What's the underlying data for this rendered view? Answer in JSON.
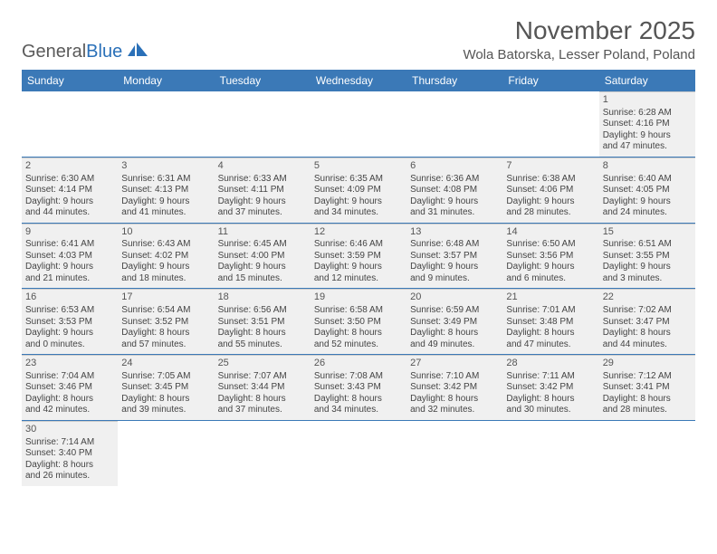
{
  "logo": {
    "text1": "General",
    "text2": "Blue"
  },
  "title": "November 2025",
  "location": "Wola Batorska, Lesser Poland, Poland",
  "day_headers": [
    "Sunday",
    "Monday",
    "Tuesday",
    "Wednesday",
    "Thursday",
    "Friday",
    "Saturday"
  ],
  "colors": {
    "header_bg": "#3b79b7",
    "header_text": "#ffffff",
    "cell_bg": "#f0f0f0",
    "text": "#444444",
    "rule": "#3b79b7"
  },
  "weeks": [
    [
      null,
      null,
      null,
      null,
      null,
      null,
      {
        "n": "1",
        "sr": "Sunrise: 6:28 AM",
        "ss": "Sunset: 4:16 PM",
        "d1": "Daylight: 9 hours",
        "d2": "and 47 minutes."
      }
    ],
    [
      {
        "n": "2",
        "sr": "Sunrise: 6:30 AM",
        "ss": "Sunset: 4:14 PM",
        "d1": "Daylight: 9 hours",
        "d2": "and 44 minutes."
      },
      {
        "n": "3",
        "sr": "Sunrise: 6:31 AM",
        "ss": "Sunset: 4:13 PM",
        "d1": "Daylight: 9 hours",
        "d2": "and 41 minutes."
      },
      {
        "n": "4",
        "sr": "Sunrise: 6:33 AM",
        "ss": "Sunset: 4:11 PM",
        "d1": "Daylight: 9 hours",
        "d2": "and 37 minutes."
      },
      {
        "n": "5",
        "sr": "Sunrise: 6:35 AM",
        "ss": "Sunset: 4:09 PM",
        "d1": "Daylight: 9 hours",
        "d2": "and 34 minutes."
      },
      {
        "n": "6",
        "sr": "Sunrise: 6:36 AM",
        "ss": "Sunset: 4:08 PM",
        "d1": "Daylight: 9 hours",
        "d2": "and 31 minutes."
      },
      {
        "n": "7",
        "sr": "Sunrise: 6:38 AM",
        "ss": "Sunset: 4:06 PM",
        "d1": "Daylight: 9 hours",
        "d2": "and 28 minutes."
      },
      {
        "n": "8",
        "sr": "Sunrise: 6:40 AM",
        "ss": "Sunset: 4:05 PM",
        "d1": "Daylight: 9 hours",
        "d2": "and 24 minutes."
      }
    ],
    [
      {
        "n": "9",
        "sr": "Sunrise: 6:41 AM",
        "ss": "Sunset: 4:03 PM",
        "d1": "Daylight: 9 hours",
        "d2": "and 21 minutes."
      },
      {
        "n": "10",
        "sr": "Sunrise: 6:43 AM",
        "ss": "Sunset: 4:02 PM",
        "d1": "Daylight: 9 hours",
        "d2": "and 18 minutes."
      },
      {
        "n": "11",
        "sr": "Sunrise: 6:45 AM",
        "ss": "Sunset: 4:00 PM",
        "d1": "Daylight: 9 hours",
        "d2": "and 15 minutes."
      },
      {
        "n": "12",
        "sr": "Sunrise: 6:46 AM",
        "ss": "Sunset: 3:59 PM",
        "d1": "Daylight: 9 hours",
        "d2": "and 12 minutes."
      },
      {
        "n": "13",
        "sr": "Sunrise: 6:48 AM",
        "ss": "Sunset: 3:57 PM",
        "d1": "Daylight: 9 hours",
        "d2": "and 9 minutes."
      },
      {
        "n": "14",
        "sr": "Sunrise: 6:50 AM",
        "ss": "Sunset: 3:56 PM",
        "d1": "Daylight: 9 hours",
        "d2": "and 6 minutes."
      },
      {
        "n": "15",
        "sr": "Sunrise: 6:51 AM",
        "ss": "Sunset: 3:55 PM",
        "d1": "Daylight: 9 hours",
        "d2": "and 3 minutes."
      }
    ],
    [
      {
        "n": "16",
        "sr": "Sunrise: 6:53 AM",
        "ss": "Sunset: 3:53 PM",
        "d1": "Daylight: 9 hours",
        "d2": "and 0 minutes."
      },
      {
        "n": "17",
        "sr": "Sunrise: 6:54 AM",
        "ss": "Sunset: 3:52 PM",
        "d1": "Daylight: 8 hours",
        "d2": "and 57 minutes."
      },
      {
        "n": "18",
        "sr": "Sunrise: 6:56 AM",
        "ss": "Sunset: 3:51 PM",
        "d1": "Daylight: 8 hours",
        "d2": "and 55 minutes."
      },
      {
        "n": "19",
        "sr": "Sunrise: 6:58 AM",
        "ss": "Sunset: 3:50 PM",
        "d1": "Daylight: 8 hours",
        "d2": "and 52 minutes."
      },
      {
        "n": "20",
        "sr": "Sunrise: 6:59 AM",
        "ss": "Sunset: 3:49 PM",
        "d1": "Daylight: 8 hours",
        "d2": "and 49 minutes."
      },
      {
        "n": "21",
        "sr": "Sunrise: 7:01 AM",
        "ss": "Sunset: 3:48 PM",
        "d1": "Daylight: 8 hours",
        "d2": "and 47 minutes."
      },
      {
        "n": "22",
        "sr": "Sunrise: 7:02 AM",
        "ss": "Sunset: 3:47 PM",
        "d1": "Daylight: 8 hours",
        "d2": "and 44 minutes."
      }
    ],
    [
      {
        "n": "23",
        "sr": "Sunrise: 7:04 AM",
        "ss": "Sunset: 3:46 PM",
        "d1": "Daylight: 8 hours",
        "d2": "and 42 minutes."
      },
      {
        "n": "24",
        "sr": "Sunrise: 7:05 AM",
        "ss": "Sunset: 3:45 PM",
        "d1": "Daylight: 8 hours",
        "d2": "and 39 minutes."
      },
      {
        "n": "25",
        "sr": "Sunrise: 7:07 AM",
        "ss": "Sunset: 3:44 PM",
        "d1": "Daylight: 8 hours",
        "d2": "and 37 minutes."
      },
      {
        "n": "26",
        "sr": "Sunrise: 7:08 AM",
        "ss": "Sunset: 3:43 PM",
        "d1": "Daylight: 8 hours",
        "d2": "and 34 minutes."
      },
      {
        "n": "27",
        "sr": "Sunrise: 7:10 AM",
        "ss": "Sunset: 3:42 PM",
        "d1": "Daylight: 8 hours",
        "d2": "and 32 minutes."
      },
      {
        "n": "28",
        "sr": "Sunrise: 7:11 AM",
        "ss": "Sunset: 3:42 PM",
        "d1": "Daylight: 8 hours",
        "d2": "and 30 minutes."
      },
      {
        "n": "29",
        "sr": "Sunrise: 7:12 AM",
        "ss": "Sunset: 3:41 PM",
        "d1": "Daylight: 8 hours",
        "d2": "and 28 minutes."
      }
    ],
    [
      {
        "n": "30",
        "sr": "Sunrise: 7:14 AM",
        "ss": "Sunset: 3:40 PM",
        "d1": "Daylight: 8 hours",
        "d2": "and 26 minutes."
      },
      null,
      null,
      null,
      null,
      null,
      null
    ]
  ]
}
